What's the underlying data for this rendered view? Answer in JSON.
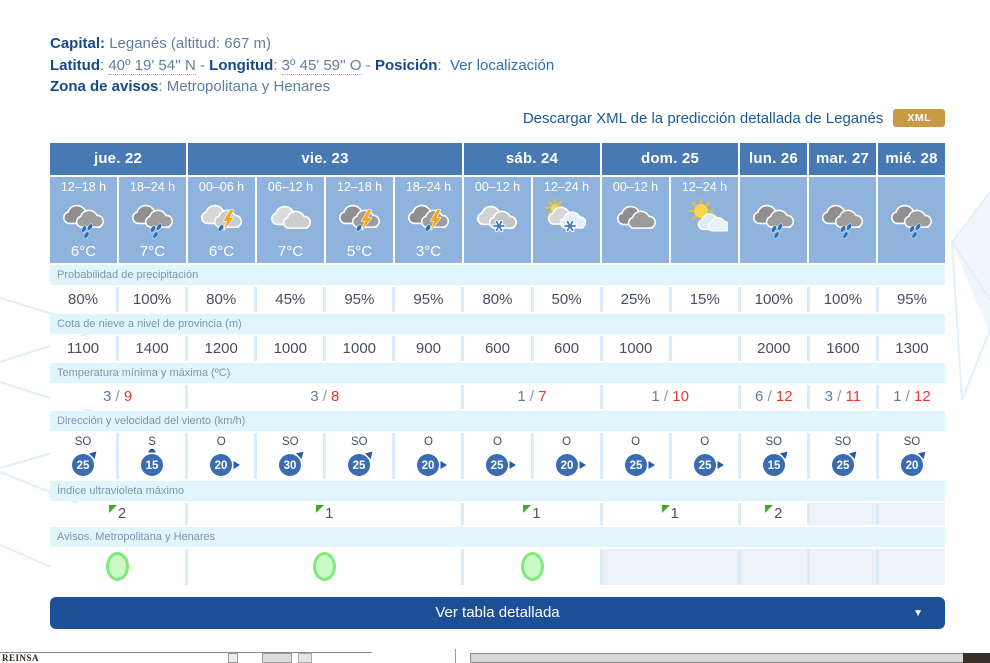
{
  "meta": {
    "capital_label": "Capital:",
    "capital_value": "Leganés (altitud: 667 m)",
    "latitud_label": "Latitud",
    "latitud_value": "40º 19' 54'' N",
    "sep1": "-",
    "longitud_label": "Longitud",
    "longitud_value": "3º 45' 59'' O",
    "sep2": "-",
    "posicion_label": "Posición",
    "posicion_link": "Ver localización",
    "zona_label": "Zona de avisos",
    "zona_value": "Metropolitana y Henares"
  },
  "download": {
    "text": "Descargar XML de la predicción detallada de Leganés",
    "badge": "XML"
  },
  "table": {
    "days": [
      {
        "label": "jue. 22",
        "span": 2
      },
      {
        "label": "vie. 23",
        "span": 4
      },
      {
        "label": "sáb. 24",
        "span": 2
      },
      {
        "label": "dom. 25",
        "span": 2
      },
      {
        "label": "lun. 26",
        "span": 1
      },
      {
        "label": "mar. 27",
        "span": 1
      },
      {
        "label": "mié. 28",
        "span": 1
      }
    ],
    "columns": [
      {
        "slot": "12–18 h",
        "icon": "rain-dark",
        "temp": "6°C",
        "precip": "80%",
        "snow": "1100",
        "wind_dir": "SO",
        "wind_speed": "25",
        "wind_arrow": "ne"
      },
      {
        "slot": "18–24 h",
        "icon": "rain-dark",
        "temp": "7°C",
        "precip": "100%",
        "snow": "1400",
        "wind_dir": "S",
        "wind_speed": "15",
        "wind_arrow": "n"
      },
      {
        "slot": "00–06 h",
        "icon": "storm-light",
        "temp": "6°C",
        "precip": "80%",
        "snow": "1200",
        "wind_dir": "O",
        "wind_speed": "20",
        "wind_arrow": "e"
      },
      {
        "slot": "06–12 h",
        "icon": "clouds-light",
        "temp": "7°C",
        "precip": "45%",
        "snow": "1000",
        "wind_dir": "SO",
        "wind_speed": "30",
        "wind_arrow": "ne"
      },
      {
        "slot": "12–18 h",
        "icon": "storm-dark",
        "temp": "5°C",
        "precip": "95%",
        "snow": "1000",
        "wind_dir": "SO",
        "wind_speed": "25",
        "wind_arrow": "ne"
      },
      {
        "slot": "18–24 h",
        "icon": "storm-dark",
        "temp": "3°C",
        "precip": "95%",
        "snow": "900",
        "wind_dir": "O",
        "wind_speed": "20",
        "wind_arrow": "e"
      },
      {
        "slot": "00–12 h",
        "icon": "snow",
        "temp": "",
        "precip": "80%",
        "snow": "600",
        "wind_dir": "O",
        "wind_speed": "25",
        "wind_arrow": "e"
      },
      {
        "slot": "12–24 h",
        "icon": "snow-sun",
        "temp": "",
        "precip": "50%",
        "snow": "600",
        "wind_dir": "O",
        "wind_speed": "20",
        "wind_arrow": "e"
      },
      {
        "slot": "00–12 h",
        "icon": "clouds-dark",
        "temp": "",
        "precip": "25%",
        "snow": "1000",
        "wind_dir": "O",
        "wind_speed": "25",
        "wind_arrow": "e"
      },
      {
        "slot": "12–24 h",
        "icon": "sun-clouds",
        "temp": "",
        "precip": "15%",
        "snow": "",
        "wind_dir": "O",
        "wind_speed": "25",
        "wind_arrow": "e"
      },
      {
        "slot": "",
        "icon": "rain-dark",
        "temp": "",
        "precip": "100%",
        "snow": "2000",
        "wind_dir": "SO",
        "wind_speed": "15",
        "wind_arrow": "ne"
      },
      {
        "slot": "",
        "icon": "rain-dark",
        "temp": "",
        "precip": "100%",
        "snow": "1600",
        "wind_dir": "SO",
        "wind_speed": "25",
        "wind_arrow": "ne"
      },
      {
        "slot": "",
        "icon": "rain-dark",
        "temp": "",
        "precip": "95%",
        "snow": "1300",
        "wind_dir": "SO",
        "wind_speed": "20",
        "wind_arrow": "ne"
      }
    ],
    "row_labels": {
      "precip": "Probabilidad de precipitación",
      "snow": "Cota de nieve a nivel de provincia (m)",
      "temp": "Temperatura mínima y máxima (ºC)",
      "wind": "Dirección y velocidad del viento (km/h)",
      "uv": "Índice ultravioleta máximo",
      "avisos": "Avisos. Metropolitana y Henares"
    },
    "day_rows": {
      "temp": [
        {
          "min": "3",
          "max": "9"
        },
        {
          "min": "3",
          "max": "8"
        },
        {
          "min": "1",
          "max": "7"
        },
        {
          "min": "1",
          "max": "10"
        },
        {
          "min": "6",
          "max": "12"
        },
        {
          "min": "3",
          "max": "11"
        },
        {
          "min": "1",
          "max": "12"
        }
      ],
      "uv": [
        "2",
        "1",
        "1",
        "1",
        "2",
        "",
        ""
      ],
      "avisos": [
        "green",
        "green",
        "green",
        "",
        "",
        "",
        ""
      ]
    }
  },
  "detail_button": {
    "label": "Ver tabla detallada",
    "caret": "▼"
  },
  "footer": {
    "text": "REINSA"
  },
  "colors": {
    "header_blue": "#4879B2",
    "cell_blue": "#8FB3DC",
    "label_cyan": "#E0F5FC",
    "accent_dark_blue": "#1D4F97",
    "xml_gold": "#C79A43",
    "temp_max_red": "#E23B32",
    "temp_min_blue": "#5E7E9F",
    "wind_circle_blue": "#3A6CB4",
    "aviso_green": "#7FE97B",
    "uv_flag_green": "#43A82F"
  }
}
